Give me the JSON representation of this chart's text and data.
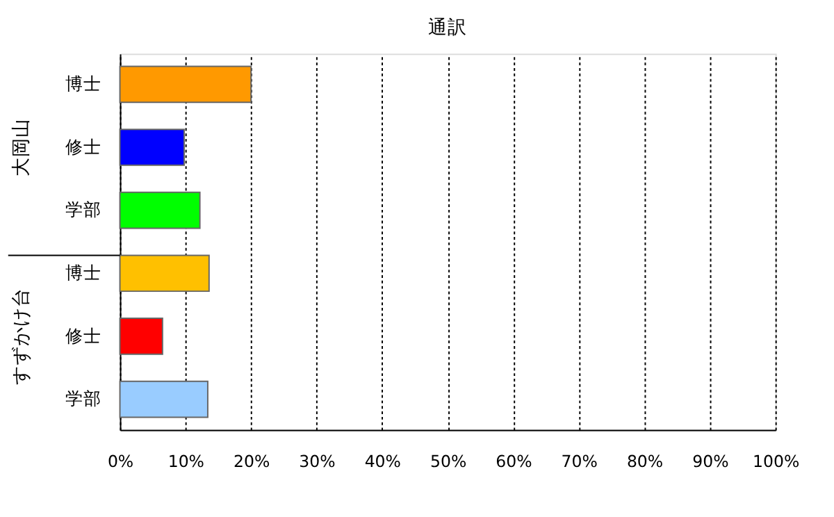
{
  "chart_data": {
    "type": "bar",
    "orientation": "horizontal",
    "title": "通訳",
    "categories": [
      "博士",
      "修士",
      "学部",
      "博士",
      "修士",
      "学部"
    ],
    "values": [
      20,
      9.8,
      12.2,
      13.6,
      6.5,
      13.4
    ],
    "colors": [
      "#ff9900",
      "#0000ff",
      "#00ff00",
      "#ffc000",
      "#ff0000",
      "#99ccff"
    ],
    "xlim": [
      0,
      100
    ],
    "xticks": [
      {
        "value": 0,
        "label": "0%"
      },
      {
        "value": 10,
        "label": "10%"
      },
      {
        "value": 20,
        "label": "20%"
      },
      {
        "value": 30,
        "label": "30%"
      },
      {
        "value": 40,
        "label": "40%"
      },
      {
        "value": 50,
        "label": "50%"
      },
      {
        "value": 60,
        "label": "60%"
      },
      {
        "value": 70,
        "label": "70%"
      },
      {
        "value": 80,
        "label": "80%"
      },
      {
        "value": 90,
        "label": "90%"
      },
      {
        "value": 100,
        "label": "100%"
      }
    ],
    "annotations": [
      "大岡山",
      "すずかけ台"
    ],
    "grid": "x",
    "legend": false
  }
}
